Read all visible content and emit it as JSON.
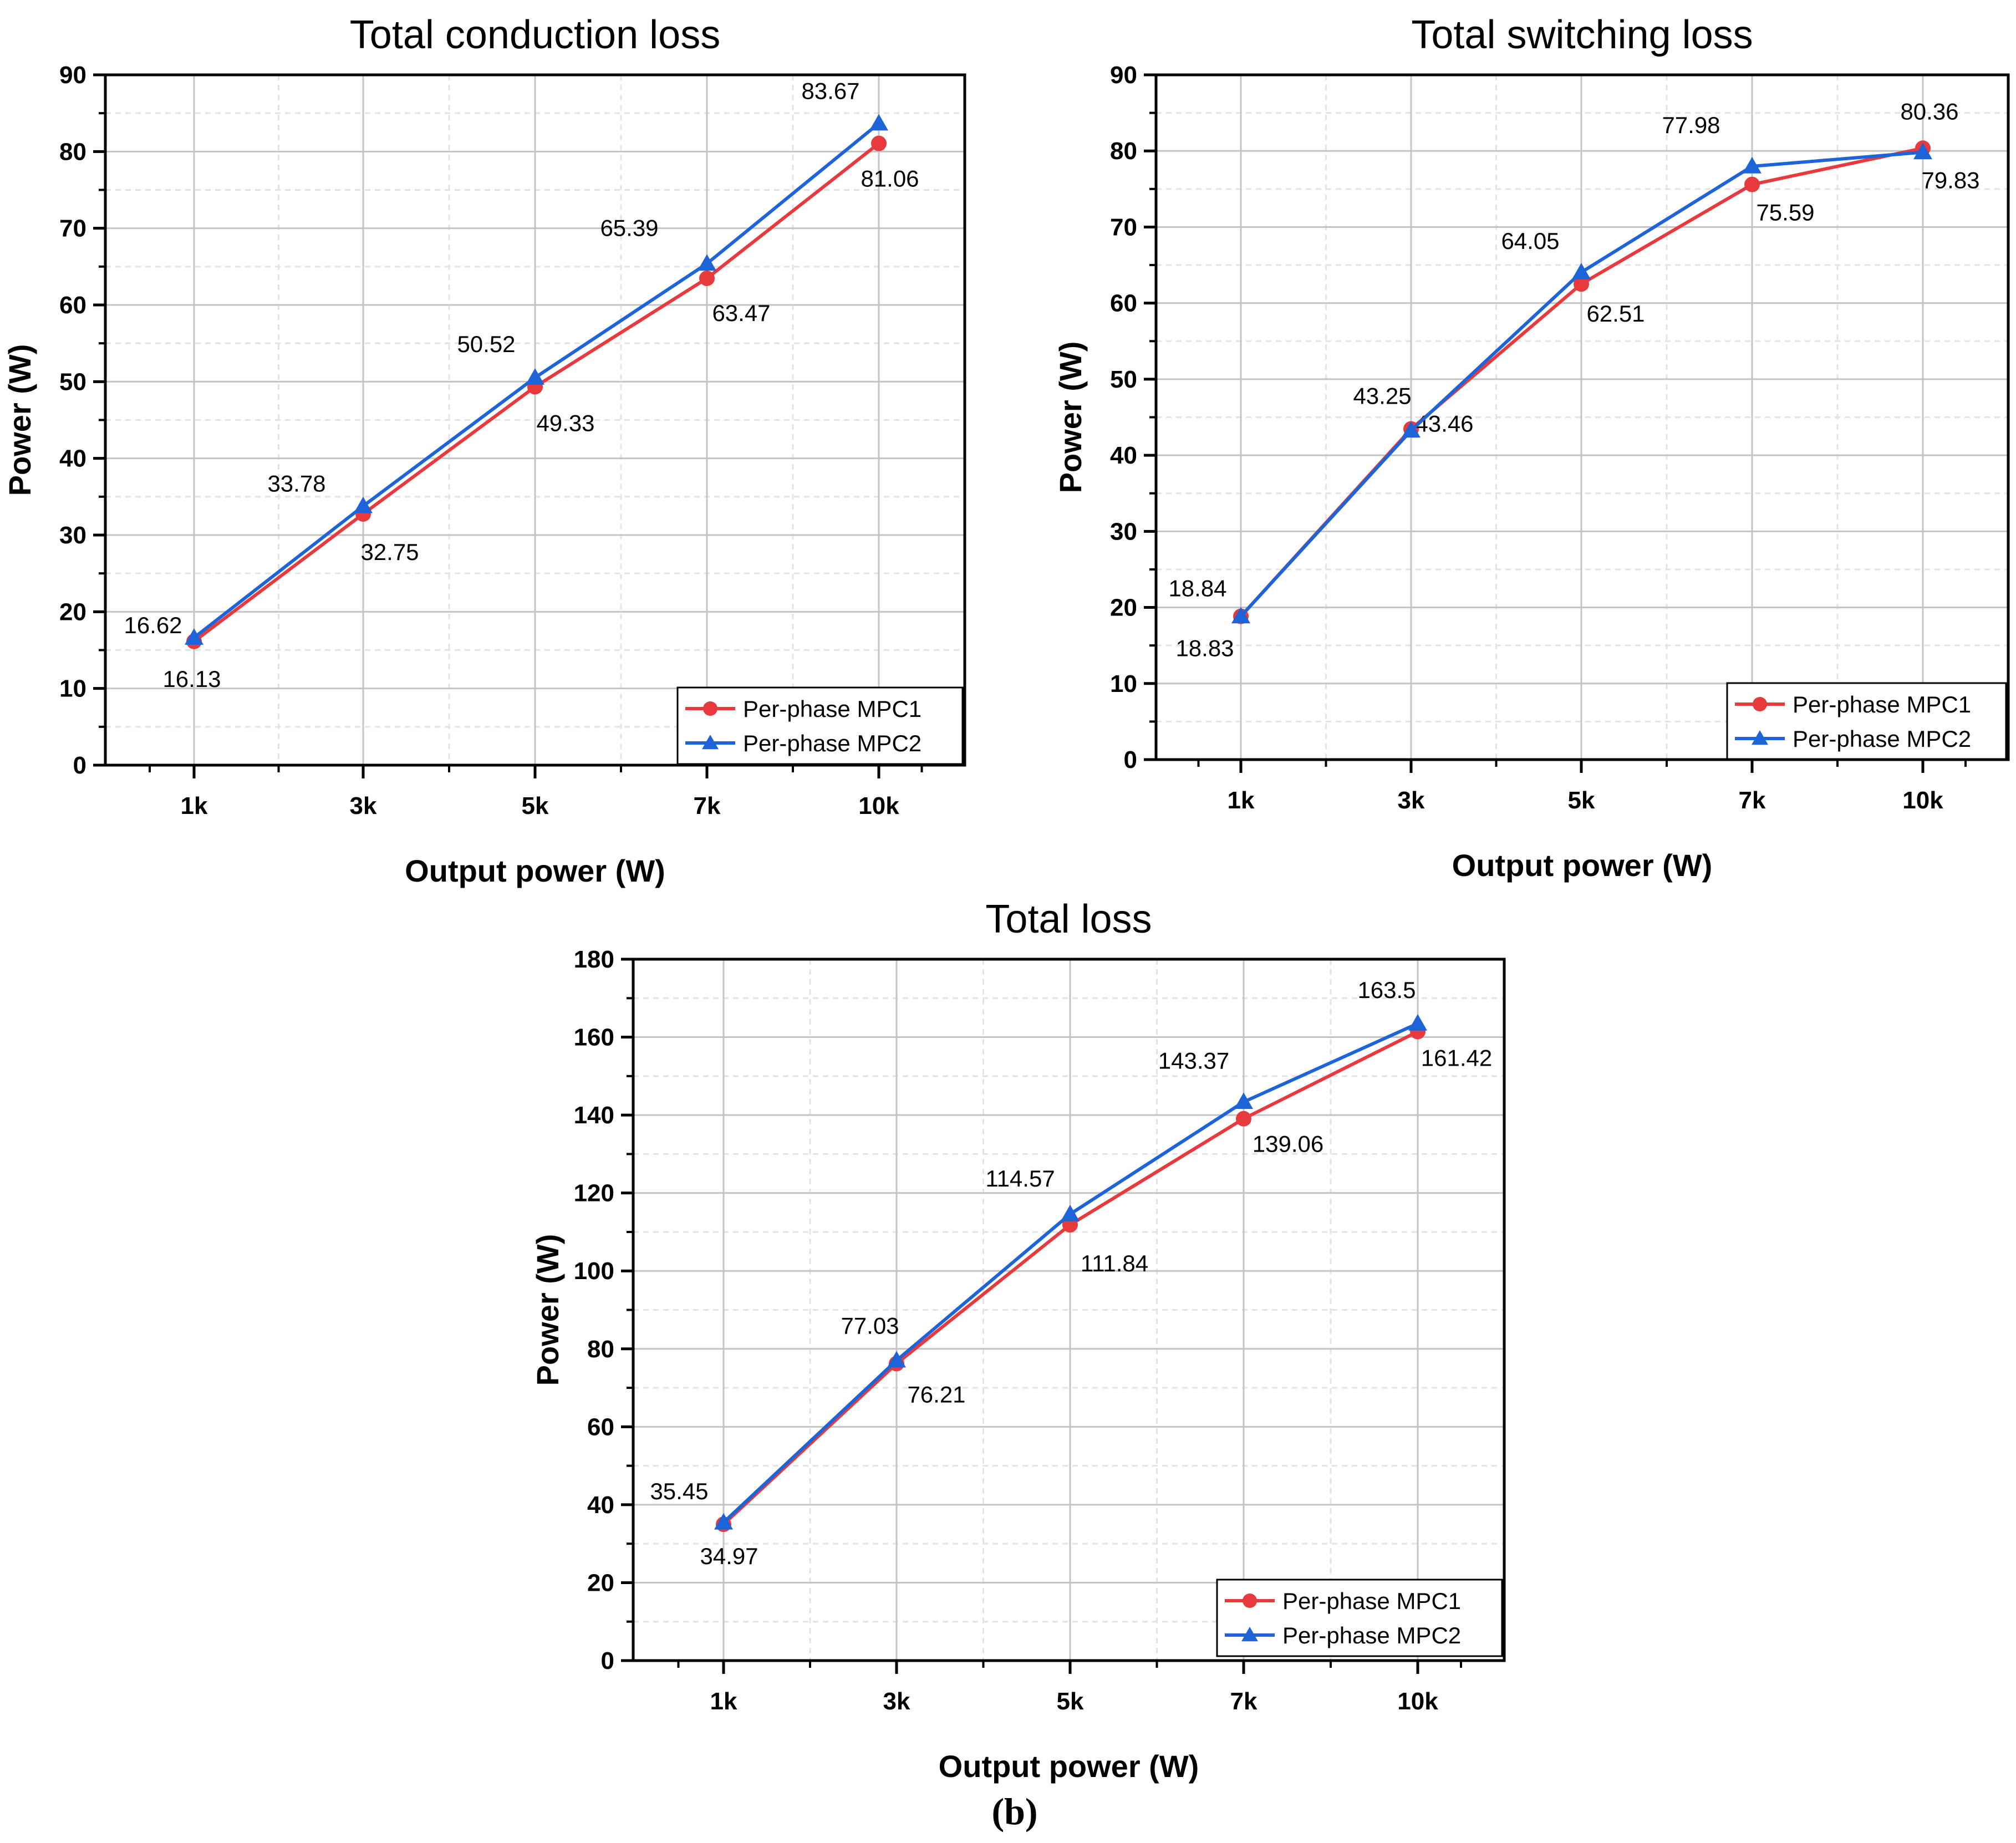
{
  "caption": "(b)",
  "colors": {
    "mpc1": "#e8393d",
    "mpc2": "#1d64d8"
  },
  "chart_data": [
    {
      "type": "line",
      "title": "Total conduction loss",
      "xlabel": "Output power (W)",
      "ylabel": "Power (W)",
      "categories": [
        "1k",
        "3k",
        "5k",
        "7k",
        "10k"
      ],
      "ylim": [
        0,
        90
      ],
      "yticks": [
        "0",
        "10",
        "20",
        "30",
        "40",
        "50",
        "60",
        "70",
        "80",
        "90"
      ],
      "legend": "bottom-right",
      "grid": true,
      "series": [
        {
          "name": "Per-phase MPC1",
          "marker": "circle",
          "values": [
            16.13,
            32.75,
            49.33,
            63.47,
            81.06
          ],
          "labels": [
            "16.13",
            "32.75",
            "49.33",
            "63.47",
            "81.06"
          ]
        },
        {
          "name": "Per-phase MPC2",
          "marker": "triangle",
          "values": [
            16.62,
            33.78,
            50.52,
            65.39,
            83.67
          ],
          "labels": [
            "16.62",
            "33.78",
            "50.52",
            "65.39",
            "83.67"
          ]
        }
      ]
    },
    {
      "type": "line",
      "title": "Total switching loss",
      "xlabel": "Output power (W)",
      "ylabel": "Power (W)",
      "categories": [
        "1k",
        "3k",
        "5k",
        "7k",
        "10k"
      ],
      "ylim": [
        0,
        90
      ],
      "yticks": [
        "0",
        "10",
        "20",
        "30",
        "40",
        "50",
        "60",
        "70",
        "80",
        "90"
      ],
      "legend": "bottom-right",
      "grid": true,
      "series": [
        {
          "name": "Per-phase MPC1",
          "marker": "circle",
          "values": [
            18.83,
            43.46,
            62.51,
            75.59,
            80.36
          ],
          "labels": [
            "18.83",
            "43.46",
            "62.51",
            "75.59",
            "80.36"
          ]
        },
        {
          "name": "Per-phase MPC2",
          "marker": "triangle",
          "values": [
            18.84,
            43.25,
            64.05,
            77.98,
            79.83
          ],
          "labels": [
            "18.84",
            "43.25",
            "64.05",
            "77.98",
            "79.83"
          ]
        }
      ]
    },
    {
      "type": "line",
      "title": "Total loss",
      "xlabel": "Output power (W)",
      "ylabel": "Power (W)",
      "categories": [
        "1k",
        "3k",
        "5k",
        "7k",
        "10k"
      ],
      "ylim": [
        0,
        180
      ],
      "yticks": [
        "0",
        "20",
        "40",
        "60",
        "80",
        "100",
        "120",
        "140",
        "160",
        "180"
      ],
      "legend": "bottom-right",
      "grid": true,
      "series": [
        {
          "name": "Per-phase MPC1",
          "marker": "circle",
          "values": [
            34.97,
            76.21,
            111.84,
            139.06,
            161.42
          ],
          "labels": [
            "34.97",
            "76.21",
            "111.84",
            "139.06",
            "161.42"
          ]
        },
        {
          "name": "Per-phase MPC2",
          "marker": "triangle",
          "values": [
            35.45,
            77.03,
            114.57,
            143.37,
            163.5
          ],
          "labels": [
            "35.45",
            "77.03",
            "114.57",
            "143.37",
            "163.5"
          ]
        }
      ]
    }
  ]
}
